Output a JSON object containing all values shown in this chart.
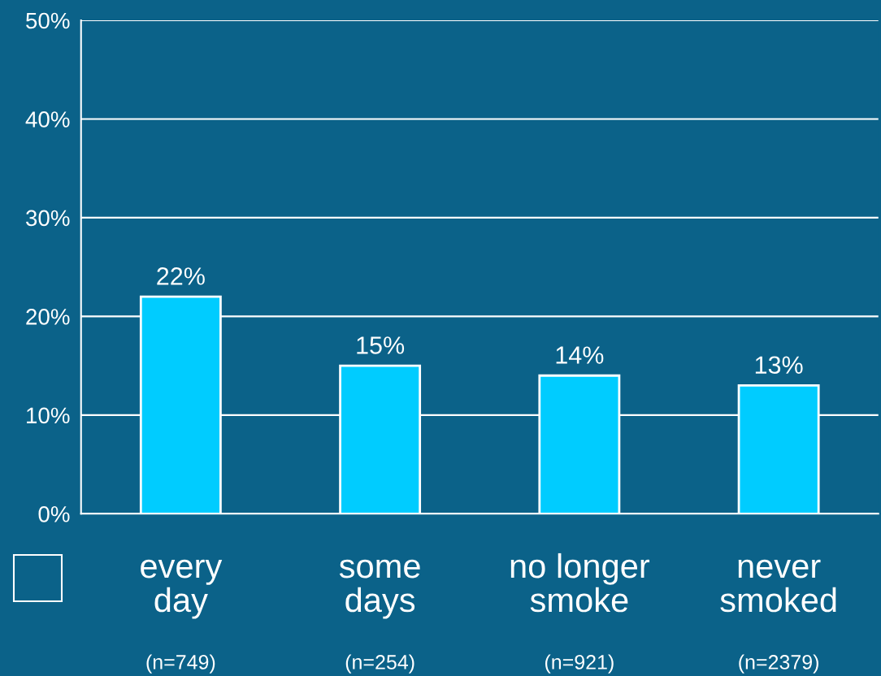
{
  "chart_data": {
    "type": "bar",
    "categories": [
      "every\nday\n(n=749)",
      "some\ndays\n(n=254)",
      "no longer\nsmoke\n(n=921)",
      "never\nsmoked\n(n=2379)"
    ],
    "values": [
      22,
      15,
      14,
      13
    ],
    "value_labels": [
      "22%",
      "15%",
      "14%",
      "13%"
    ],
    "color": "#00ccff",
    "ylim": [
      0,
      50
    ],
    "yticks": [
      {
        "value": 0,
        "label": "0%"
      },
      {
        "value": 10,
        "label": "10%"
      },
      {
        "value": 20,
        "label": "20%"
      },
      {
        "value": 30,
        "label": "30%"
      },
      {
        "value": 40,
        "label": "40%"
      },
      {
        "value": 50,
        "label": "50%"
      }
    ],
    "grid": "y",
    "legend": false
  }
}
